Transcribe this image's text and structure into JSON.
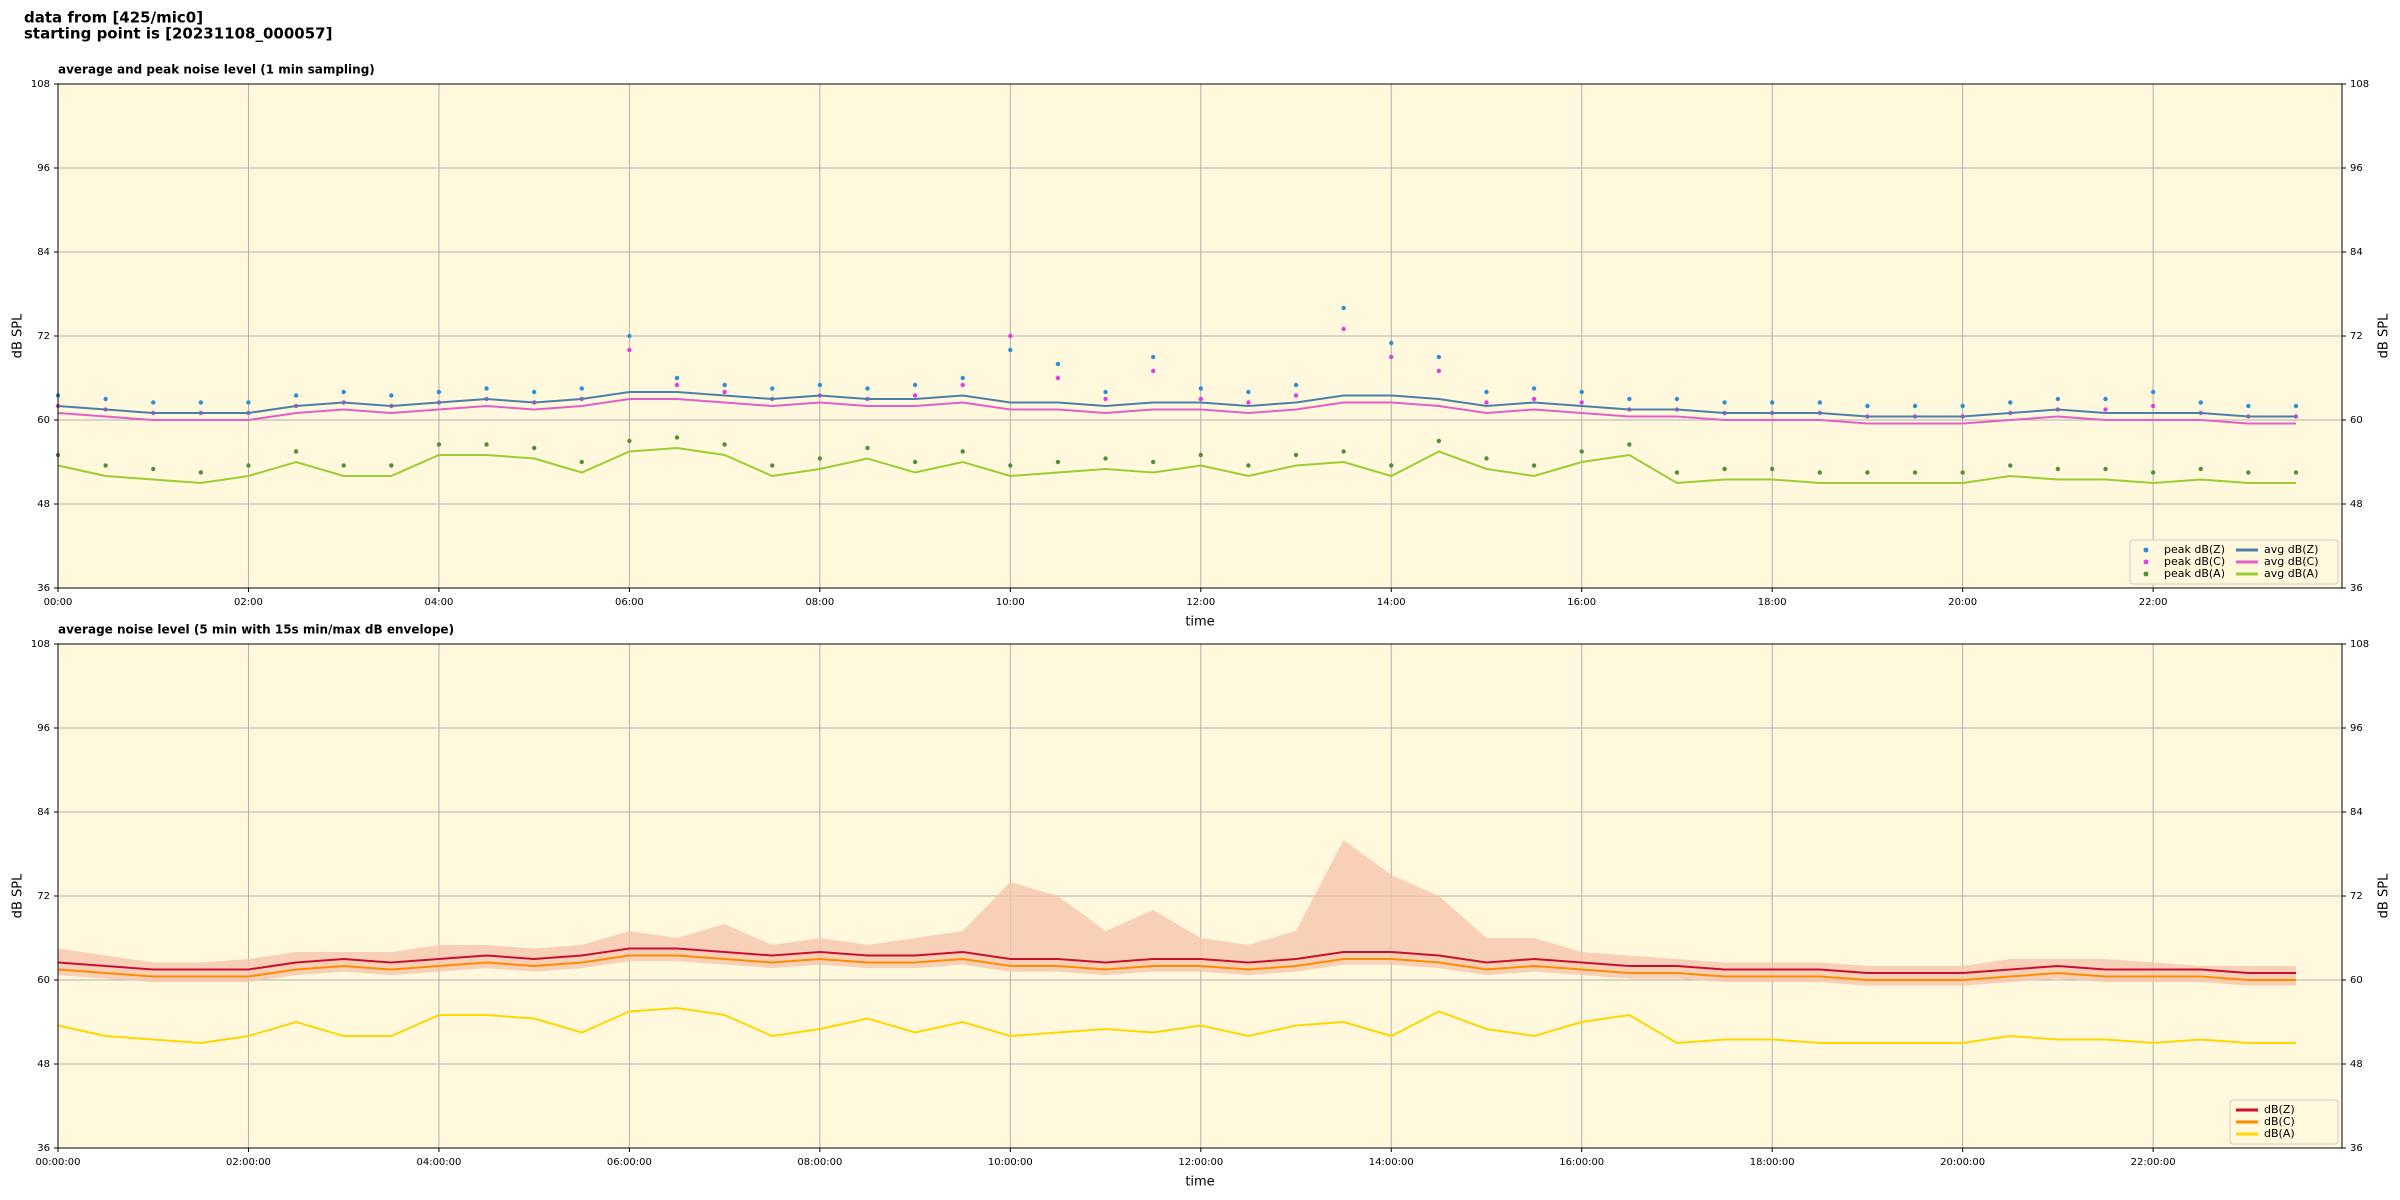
{
  "header": {
    "lines": [
      "data from [425/mic0]",
      "starting point is [20231108_000057]"
    ]
  },
  "chart_data": [
    {
      "type": "line",
      "title": "average and peak noise level (1 min sampling)",
      "x_label": "time",
      "y_label": "dB SPL",
      "background": "#fff8dc",
      "grid": true,
      "legend": "lower right",
      "legend_columns": 2,
      "xlim": [
        "00:00",
        "23:59"
      ],
      "xticks": [
        "00:00",
        "02:00",
        "04:00",
        "06:00",
        "08:00",
        "10:00",
        "12:00",
        "14:00",
        "16:00",
        "18:00",
        "20:00",
        "22:00"
      ],
      "ylim": [
        36,
        108
      ],
      "yticks": [
        36,
        48,
        60,
        72,
        84,
        96,
        108
      ],
      "x": [
        "00:00",
        "00:30",
        "01:00",
        "01:30",
        "02:00",
        "02:30",
        "03:00",
        "03:30",
        "04:00",
        "04:30",
        "05:00",
        "05:30",
        "06:00",
        "06:30",
        "07:00",
        "07:30",
        "08:00",
        "08:30",
        "09:00",
        "09:30",
        "10:00",
        "10:30",
        "11:00",
        "11:30",
        "12:00",
        "12:30",
        "13:00",
        "13:30",
        "14:00",
        "14:30",
        "15:00",
        "15:30",
        "16:00",
        "16:30",
        "17:00",
        "17:30",
        "18:00",
        "18:30",
        "19:00",
        "19:30",
        "20:00",
        "20:30",
        "21:00",
        "21:30",
        "22:00",
        "22:30",
        "23:00",
        "23:30"
      ],
      "series": [
        {
          "name": "peak dB(Z)",
          "kind": "points",
          "color": "#2a8fd6",
          "values": [
            63.5,
            63,
            62.5,
            62.5,
            62.5,
            63.5,
            64,
            63.5,
            64,
            64.5,
            64,
            64.5,
            72,
            66,
            65,
            64.5,
            65,
            64.5,
            65,
            66,
            70,
            68,
            64,
            69,
            64.5,
            64,
            65,
            76,
            71,
            69,
            64,
            64.5,
            64,
            63,
            63,
            62.5,
            62.5,
            62.5,
            62,
            62,
            62,
            62.5,
            63,
            63,
            64,
            62.5,
            62,
            62
          ]
        },
        {
          "name": "peak dB(C)",
          "kind": "points",
          "color": "#e03ee0",
          "values": [
            62,
            61.5,
            61,
            61,
            61,
            62,
            62.5,
            62,
            62.5,
            63,
            62.5,
            63,
            70,
            65,
            64,
            63,
            63.5,
            63,
            63.5,
            65,
            72,
            66,
            63,
            67,
            63,
            62.5,
            63.5,
            73,
            69,
            67,
            62.5,
            63,
            62.5,
            61.5,
            61.5,
            61,
            61,
            61,
            60.5,
            60.5,
            60.5,
            61,
            61.5,
            61.5,
            62,
            61,
            60.5,
            60.5
          ]
        },
        {
          "name": "peak dB(A)",
          "kind": "points",
          "color": "#4f8f3a",
          "values": [
            55,
            53.5,
            53,
            52.5,
            53.5,
            55.5,
            53.5,
            53.5,
            56.5,
            56.5,
            56,
            54,
            57,
            57.5,
            56.5,
            53.5,
            54.5,
            56,
            54,
            55.5,
            53.5,
            54,
            54.5,
            54,
            55,
            53.5,
            55,
            55.5,
            53.5,
            57,
            54.5,
            53.5,
            55.5,
            56.5,
            52.5,
            53,
            53,
            52.5,
            52.5,
            52.5,
            52.5,
            53.5,
            53,
            53,
            52.5,
            53,
            52.5,
            52.5
          ]
        },
        {
          "name": "avg dB(Z)",
          "kind": "line",
          "color": "#4a7fa8",
          "values": [
            62,
            61.5,
            61,
            61,
            61,
            62,
            62.5,
            62,
            62.5,
            63,
            62.5,
            63,
            64,
            64,
            63.5,
            63,
            63.5,
            63,
            63,
            63.5,
            62.5,
            62.5,
            62,
            62.5,
            62.5,
            62,
            62.5,
            63.5,
            63.5,
            63,
            62,
            62.5,
            62,
            61.5,
            61.5,
            61,
            61,
            61,
            60.5,
            60.5,
            60.5,
            61,
            61.5,
            61,
            61,
            61,
            60.5,
            60.5
          ]
        },
        {
          "name": "avg dB(C)",
          "kind": "line",
          "color": "#e060c8",
          "values": [
            61,
            60.5,
            60,
            60,
            60,
            61,
            61.5,
            61,
            61.5,
            62,
            61.5,
            62,
            63,
            63,
            62.5,
            62,
            62.5,
            62,
            62,
            62.5,
            61.5,
            61.5,
            61,
            61.5,
            61.5,
            61,
            61.5,
            62.5,
            62.5,
            62,
            61,
            61.5,
            61,
            60.5,
            60.5,
            60,
            60,
            60,
            59.5,
            59.5,
            59.5,
            60,
            60.5,
            60,
            60,
            60,
            59.5,
            59.5
          ]
        },
        {
          "name": "avg dB(A)",
          "kind": "line",
          "color": "#9acd32",
          "values": [
            53.5,
            52,
            51.5,
            51,
            52,
            54,
            52,
            52,
            55,
            55,
            54.5,
            52.5,
            55.5,
            56,
            55,
            52,
            53,
            54.5,
            52.5,
            54,
            52,
            52.5,
            53,
            52.5,
            53.5,
            52,
            53.5,
            54,
            52,
            55.5,
            53,
            52,
            54,
            55,
            51,
            51.5,
            51.5,
            51,
            51,
            51,
            51,
            52,
            51.5,
            51.5,
            51,
            51.5,
            51,
            51
          ]
        }
      ]
    },
    {
      "type": "line",
      "title": "average noise level (5 min with 15s min/max dB envelope)",
      "x_label": "time",
      "y_label": "dB SPL",
      "background": "#fff8dc",
      "grid": true,
      "legend": "lower right",
      "legend_columns": 1,
      "xlim": [
        "00:00:00",
        "23:59:00"
      ],
      "xticks": [
        "00:00:00",
        "02:00:00",
        "04:00:00",
        "06:00:00",
        "08:00:00",
        "10:00:00",
        "12:00:00",
        "14:00:00",
        "16:00:00",
        "18:00:00",
        "20:00:00",
        "22:00:00"
      ],
      "ylim": [
        36,
        108
      ],
      "yticks": [
        36,
        48,
        60,
        72,
        84,
        96,
        108
      ],
      "x": [
        "00:00:00",
        "00:30:00",
        "01:00:00",
        "01:30:00",
        "02:00:00",
        "02:30:00",
        "03:00:00",
        "03:30:00",
        "04:00:00",
        "04:30:00",
        "05:00:00",
        "05:30:00",
        "06:00:00",
        "06:30:00",
        "07:00:00",
        "07:30:00",
        "08:00:00",
        "08:30:00",
        "09:00:00",
        "09:30:00",
        "10:00:00",
        "10:30:00",
        "11:00:00",
        "11:30:00",
        "12:00:00",
        "12:30:00",
        "13:00:00",
        "13:30:00",
        "14:00:00",
        "14:30:00",
        "15:00:00",
        "15:30:00",
        "16:00:00",
        "16:30:00",
        "17:00:00",
        "17:30:00",
        "18:00:00",
        "18:30:00",
        "19:00:00",
        "19:30:00",
        "20:00:00",
        "20:30:00",
        "21:00:00",
        "21:30:00",
        "22:00:00",
        "22:30:00",
        "23:00:00",
        "23:30:00"
      ],
      "envelope": {
        "color": "#f5c6ae",
        "upper": [
          64.5,
          63.5,
          62.5,
          62.5,
          63,
          64,
          64,
          64,
          65,
          65,
          64.5,
          65,
          67,
          66,
          68,
          65,
          66,
          65,
          66,
          67,
          74,
          72,
          67,
          70,
          66,
          65,
          67,
          80,
          75,
          72,
          66,
          66,
          64,
          63.5,
          63,
          62.5,
          62.5,
          62.5,
          62,
          62,
          62,
          63,
          63,
          63,
          62.5,
          62,
          62,
          62
        ],
        "lower": [
          60.7,
          60.2,
          59.7,
          59.7,
          59.7,
          60.7,
          61.2,
          60.7,
          61.2,
          61.7,
          61.2,
          61.7,
          62.7,
          62.7,
          62.2,
          61.7,
          62.2,
          61.7,
          61.7,
          62.2,
          61.2,
          61.2,
          60.7,
          61.2,
          61.2,
          60.7,
          61.2,
          62.2,
          62.2,
          61.7,
          60.7,
          61.2,
          60.7,
          60.2,
          60.2,
          59.7,
          59.7,
          59.7,
          59.2,
          59.2,
          59.2,
          59.7,
          60.2,
          59.7,
          59.7,
          59.7,
          59.2,
          59.2
        ]
      },
      "series": [
        {
          "name": "dB(Z)",
          "kind": "line",
          "color": "#c8102e",
          "values": [
            62.5,
            62,
            61.5,
            61.5,
            61.5,
            62.5,
            63,
            62.5,
            63,
            63.5,
            63,
            63.5,
            64.5,
            64.5,
            64,
            63.5,
            64,
            63.5,
            63.5,
            64,
            63,
            63,
            62.5,
            63,
            63,
            62.5,
            63,
            64,
            64,
            63.5,
            62.5,
            63,
            62.5,
            62,
            62,
            61.5,
            61.5,
            61.5,
            61,
            61,
            61,
            61.5,
            62,
            61.5,
            61.5,
            61.5,
            61,
            61
          ]
        },
        {
          "name": "dB(C)",
          "kind": "line",
          "color": "#ff8c00",
          "values": [
            61.5,
            61,
            60.5,
            60.5,
            60.5,
            61.5,
            62,
            61.5,
            62,
            62.5,
            62,
            62.5,
            63.5,
            63.5,
            63,
            62.5,
            63,
            62.5,
            62.5,
            63,
            62,
            62,
            61.5,
            62,
            62,
            61.5,
            62,
            63,
            63,
            62.5,
            61.5,
            62,
            61.5,
            61,
            61,
            60.5,
            60.5,
            60.5,
            60,
            60,
            60,
            60.5,
            61,
            60.5,
            60.5,
            60.5,
            60,
            60
          ]
        },
        {
          "name": "dB(A)",
          "kind": "line",
          "color": "#ffd700",
          "values": [
            53.5,
            52,
            51.5,
            51,
            52,
            54,
            52,
            52,
            55,
            55,
            54.5,
            52.5,
            55.5,
            56,
            55,
            52,
            53,
            54.5,
            52.5,
            54,
            52,
            52.5,
            53,
            52.5,
            53.5,
            52,
            53.5,
            54,
            52,
            55.5,
            53,
            52,
            54,
            55,
            51,
            51.5,
            51.5,
            51,
            51,
            51,
            51,
            52,
            51.5,
            51.5,
            51,
            51.5,
            51,
            51
          ]
        }
      ]
    }
  ]
}
